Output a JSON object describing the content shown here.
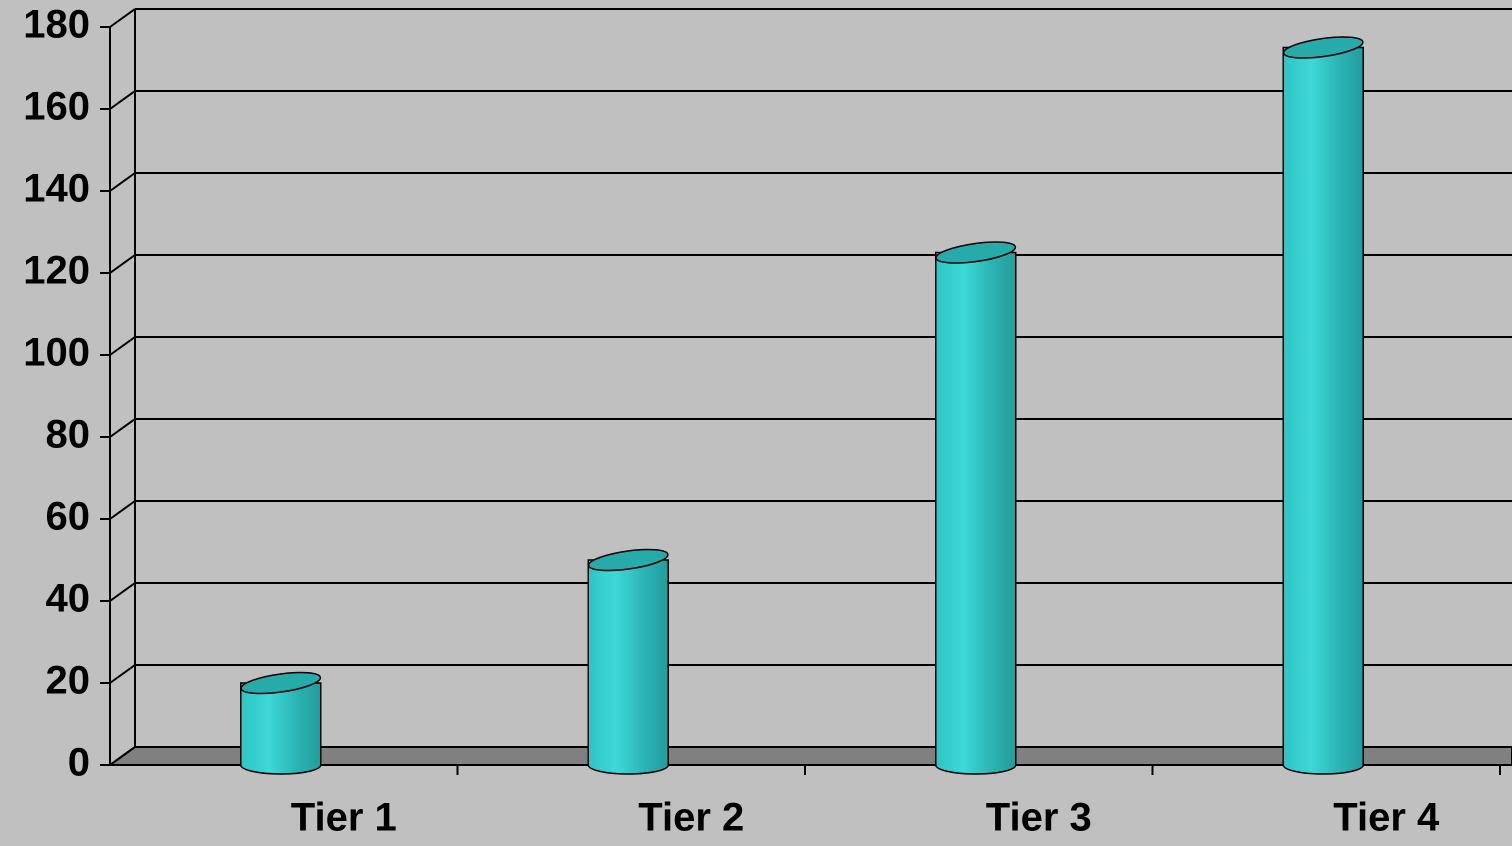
{
  "chart_data": {
    "type": "bar",
    "categories": [
      "Tier 1",
      "Tier 2",
      "Tier 3",
      "Tier 4"
    ],
    "values": [
      20,
      50,
      125,
      175
    ],
    "color": "#33cccc",
    "ylim": [
      0,
      180
    ],
    "yticks": [
      0,
      20,
      40,
      60,
      80,
      100,
      120,
      140,
      160,
      180
    ],
    "grid": true
  }
}
